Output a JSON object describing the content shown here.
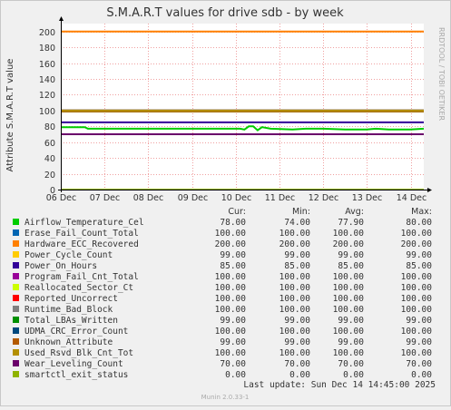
{
  "chart_data": {
    "type": "line",
    "title": "S.M.A.R.T values for drive sdb - by week",
    "ylabel": "Attribute S.M.A.R.T value",
    "watermark": "RRDTOOL / TOBI OETIKER",
    "ylim": [
      0,
      210
    ],
    "yticks": [
      0,
      20,
      40,
      60,
      80,
      100,
      120,
      140,
      160,
      180,
      200
    ],
    "xlim": [
      0,
      8.3
    ],
    "xticks": [
      0,
      1,
      2,
      3,
      4,
      5,
      6,
      7,
      8
    ],
    "xtick_labels": [
      "06 Dec",
      "07 Dec",
      "08 Dec",
      "09 Dec",
      "10 Dec",
      "11 Dec",
      "12 Dec",
      "13 Dec",
      "14 Dec"
    ],
    "grid": true,
    "columns": [
      "Cur:",
      "Min:",
      "Avg:",
      "Max:"
    ],
    "series": [
      {
        "name": "Airflow_Temperature_Cel",
        "color": "#00cc00",
        "cur": "78.00",
        "min": "74.00",
        "avg": "77.90",
        "max": "80.00",
        "x": [
          0,
          0.55,
          0.62,
          4.1,
          4.2,
          4.3,
          4.4,
          4.5,
          4.6,
          4.8,
          5.3,
          5.6,
          6.0,
          6.5,
          7.0,
          7.2,
          7.5,
          8.0,
          8.3
        ],
        "values": [
          79,
          79,
          77,
          77,
          76,
          80,
          80,
          75,
          79,
          77,
          76,
          77,
          77,
          76,
          76,
          77,
          76,
          76,
          77
        ]
      },
      {
        "name": "Erase_Fail_Count_Total",
        "color": "#0066b3",
        "cur": "100.00",
        "min": "100.00",
        "avg": "100.00",
        "max": "100.00",
        "x": [
          0,
          8.3
        ],
        "values": [
          100,
          100
        ]
      },
      {
        "name": "Hardware_ECC_Recovered",
        "color": "#ff8000",
        "cur": "200.00",
        "min": "200.00",
        "avg": "200.00",
        "max": "200.00",
        "x": [
          0,
          8.3
        ],
        "values": [
          200,
          200
        ]
      },
      {
        "name": "Power_Cycle_Count",
        "color": "#ffcc00",
        "cur": "99.00",
        "min": "99.00",
        "avg": "99.00",
        "max": "99.00",
        "x": [
          0,
          8.3
        ],
        "values": [
          99,
          99
        ]
      },
      {
        "name": "Power_On_Hours",
        "color": "#330099",
        "cur": "85.00",
        "min": "85.00",
        "avg": "85.00",
        "max": "85.00",
        "x": [
          0,
          8.3
        ],
        "values": [
          85,
          85
        ]
      },
      {
        "name": "Program_Fail_Cnt_Total",
        "color": "#990099",
        "cur": "100.00",
        "min": "100.00",
        "avg": "100.00",
        "max": "100.00",
        "x": [
          0,
          8.3
        ],
        "values": [
          100,
          100
        ]
      },
      {
        "name": "Reallocated_Sector_Ct",
        "color": "#ccff00",
        "cur": "100.00",
        "min": "100.00",
        "avg": "100.00",
        "max": "100.00",
        "x": [
          0,
          8.3
        ],
        "values": [
          100,
          100
        ]
      },
      {
        "name": "Reported_Uncorrect",
        "color": "#ff0000",
        "cur": "100.00",
        "min": "100.00",
        "avg": "100.00",
        "max": "100.00",
        "x": [
          0,
          8.3
        ],
        "values": [
          100,
          100
        ]
      },
      {
        "name": "Runtime_Bad_Block",
        "color": "#808080",
        "cur": "100.00",
        "min": "100.00",
        "avg": "100.00",
        "max": "100.00",
        "x": [
          0,
          8.3
        ],
        "values": [
          100,
          100
        ]
      },
      {
        "name": "Total_LBAs_Written",
        "color": "#008f00",
        "cur": "99.00",
        "min": "99.00",
        "avg": "99.00",
        "max": "99.00",
        "x": [
          0,
          8.3
        ],
        "values": [
          99,
          99
        ]
      },
      {
        "name": "UDMA_CRC_Error_Count",
        "color": "#00487d",
        "cur": "100.00",
        "min": "100.00",
        "avg": "100.00",
        "max": "100.00",
        "x": [
          0,
          8.3
        ],
        "values": [
          100,
          100
        ]
      },
      {
        "name": "Unknown_Attribute",
        "color": "#b35a00",
        "cur": "99.00",
        "min": "99.00",
        "avg": "99.00",
        "max": "99.00",
        "x": [
          0,
          8.3
        ],
        "values": [
          99,
          99
        ]
      },
      {
        "name": "Used_Rsvd_Blk_Cnt_Tot",
        "color": "#b38f00",
        "cur": "100.00",
        "min": "100.00",
        "avg": "100.00",
        "max": "100.00",
        "x": [
          0,
          8.3
        ],
        "values": [
          100,
          100
        ]
      },
      {
        "name": "Wear_Leveling_Count",
        "color": "#6b006b",
        "cur": "70.00",
        "min": "70.00",
        "avg": "70.00",
        "max": "70.00",
        "x": [
          0,
          8.3
        ],
        "values": [
          70,
          70
        ]
      },
      {
        "name": "smartctl_exit_status",
        "color": "#8fb300",
        "cur": "0.00",
        "min": "0.00",
        "avg": "0.00",
        "max": "0.00",
        "x": [
          0,
          8.3
        ],
        "values": [
          0,
          0
        ]
      }
    ],
    "last_update": "Last update:  Sun Dec 14 14:45:00 2025",
    "footer": "Munin 2.0.33-1"
  }
}
